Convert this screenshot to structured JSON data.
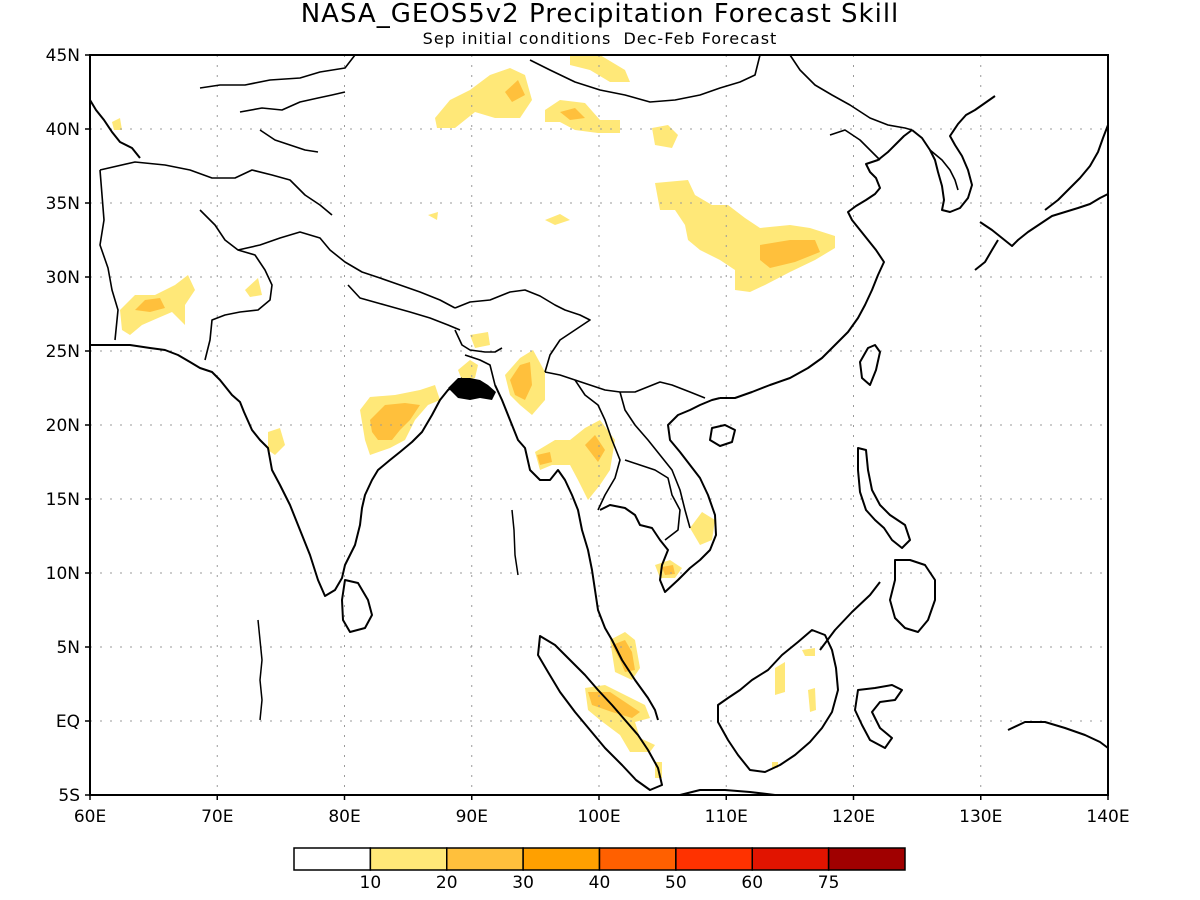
{
  "title": "NASA_GEOS5v2 Precipitation Forecast Skill",
  "subtitle": "Sep initial conditions  Dec-Feb Forecast",
  "map": {
    "lon_range": [
      60,
      140
    ],
    "lat_range": [
      -5,
      45
    ],
    "lon_ticks": [
      "60E",
      "70E",
      "80E",
      "90E",
      "100E",
      "110E",
      "120E",
      "130E",
      "140E"
    ],
    "lat_ticks": [
      "5S",
      "EQ",
      "5N",
      "10N",
      "15N",
      "20N",
      "25N",
      "30N",
      "35N",
      "40N",
      "45N"
    ],
    "grid": "dotted"
  },
  "colorbar": {
    "colors": [
      "#ffffff",
      "#ffe878",
      "#ffc03c",
      "#ffa000",
      "#ff6000",
      "#ff3200",
      "#e11400",
      "#a00000"
    ],
    "labels": [
      "10",
      "20",
      "30",
      "40",
      "50",
      "60",
      "75"
    ]
  }
}
